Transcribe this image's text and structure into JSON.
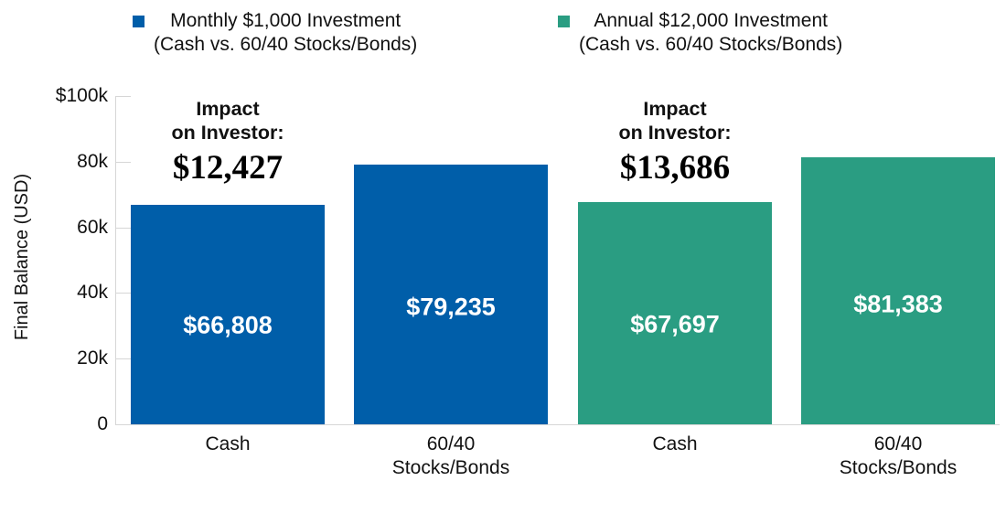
{
  "colors": {
    "monthly_blue": "#005ea9",
    "annual_green": "#2a9d82",
    "axis_gray": "#d6d6d6",
    "text": "#111111",
    "bar_label_text": "#ffffff"
  },
  "legend": {
    "items": [
      {
        "line1": "Monthly $1,000 Investment",
        "line2": "(Cash vs. 60/40 Stocks/Bonds)",
        "color": "#005ea9"
      },
      {
        "line1": "Annual $12,000 Investment",
        "line2": "(Cash vs. 60/40 Stocks/Bonds)",
        "color": "#2a9d82"
      }
    ]
  },
  "chart_data": {
    "type": "bar",
    "title": "",
    "xlabel": "",
    "ylabel": "Final Balance (USD)",
    "ylim": [
      0,
      100000
    ],
    "grid": "off",
    "legend_position": "top",
    "y_ticks": [
      {
        "label": "$100k",
        "value": 100000
      },
      {
        "label": "80k",
        "value": 80000
      },
      {
        "label": "60k",
        "value": 60000
      },
      {
        "label": "40k",
        "value": 40000
      },
      {
        "label": "20k",
        "value": 20000
      },
      {
        "label": "0",
        "value": 0
      }
    ],
    "series": [
      {
        "name": "Monthly $1,000 Investment (Cash vs. 60/40 Stocks/Bonds)",
        "color": "#005ea9"
      },
      {
        "name": "Annual $12,000 Investment (Cash vs. 60/40 Stocks/Bonds)",
        "color": "#2a9d82"
      }
    ],
    "categories": [
      "Cash",
      "60/40 Stocks/Bonds",
      "Cash",
      "60/40 Stocks/Bonds"
    ],
    "bars": [
      {
        "series": 0,
        "category_lines": [
          "Cash"
        ],
        "value": 66808,
        "label": "$66,808"
      },
      {
        "series": 0,
        "category_lines": [
          "60/40",
          "Stocks/Bonds"
        ],
        "value": 79235,
        "label": "$79,235"
      },
      {
        "series": 1,
        "category_lines": [
          "Cash"
        ],
        "value": 67697,
        "label": "$67,697"
      },
      {
        "series": 1,
        "category_lines": [
          "60/40",
          "Stocks/Bonds"
        ],
        "value": 81383,
        "label": "$81,383"
      }
    ],
    "annotations": [
      {
        "heading_lines": [
          "Impact",
          "on Investor:"
        ],
        "value": "$12,427",
        "anchor_bar_index": 0
      },
      {
        "heading_lines": [
          "Impact",
          "on Investor:"
        ],
        "value": "$13,686",
        "anchor_bar_index": 2
      }
    ]
  }
}
